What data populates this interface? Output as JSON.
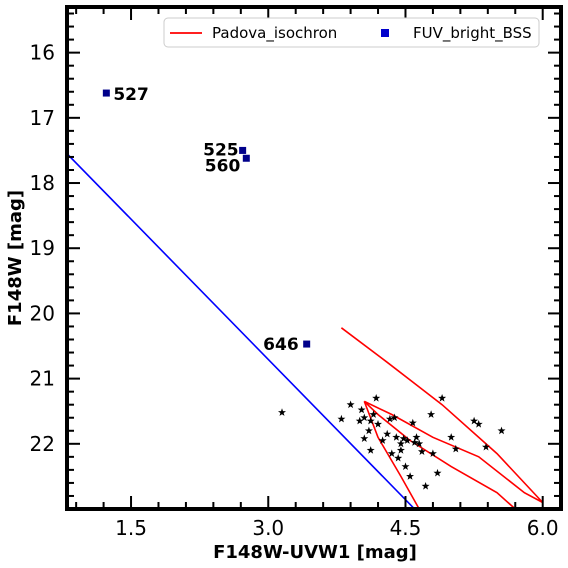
{
  "chart_data": {
    "type": "scatter",
    "title": "",
    "xlabel": "F148W-UVW1 [mag]",
    "ylabel": "F148W [mag]",
    "xlim": [
      0.8,
      6.2
    ],
    "ylim": [
      23.0,
      15.3
    ],
    "y_inverted": true,
    "xticks": [
      {
        "value": 1.5,
        "label": "1.5"
      },
      {
        "value": 3.0,
        "label": "3.0"
      },
      {
        "value": 4.5,
        "label": "4.5"
      },
      {
        "value": 6.0,
        "label": "6.0"
      }
    ],
    "yticks": [
      {
        "value": 16,
        "label": "16"
      },
      {
        "value": 17,
        "label": "17"
      },
      {
        "value": 18,
        "label": "18"
      },
      {
        "value": 19,
        "label": "19"
      },
      {
        "value": 20,
        "label": "20"
      },
      {
        "value": 21,
        "label": "21"
      },
      {
        "value": 22,
        "label": "22"
      }
    ],
    "legend": {
      "placement": "top-right",
      "entries": [
        {
          "label": "Padova_isochron",
          "marker": "line",
          "color": "#ff0000"
        },
        {
          "label": "FUV_bright_BSS",
          "marker": "square",
          "color": "#0000cc"
        }
      ]
    },
    "series": [
      {
        "name": "FUV_bright_BSS",
        "kind": "scatter-square",
        "color": "#00008b",
        "points": [
          {
            "x": 1.23,
            "y": 16.62,
            "label": "527"
          },
          {
            "x": 2.72,
            "y": 17.5,
            "label": "525"
          },
          {
            "x": 2.76,
            "y": 17.62,
            "label": "560"
          },
          {
            "x": 3.42,
            "y": 20.47,
            "label": "646"
          }
        ]
      },
      {
        "name": "Padova_isochron",
        "kind": "line",
        "color": "#ff0000",
        "points": [
          {
            "x": 3.8,
            "y": 20.22
          },
          {
            "x": 4.3,
            "y": 20.75
          },
          {
            "x": 4.9,
            "y": 21.4
          },
          {
            "x": 5.5,
            "y": 22.15
          },
          {
            "x": 6.0,
            "y": 22.9
          },
          {
            "x": 5.8,
            "y": 22.75
          },
          {
            "x": 5.3,
            "y": 22.2
          },
          {
            "x": 4.8,
            "y": 21.9
          },
          {
            "x": 4.35,
            "y": 21.55
          },
          {
            "x": 4.05,
            "y": 21.35
          },
          {
            "x": 4.2,
            "y": 21.55
          },
          {
            "x": 4.55,
            "y": 21.95
          },
          {
            "x": 5.0,
            "y": 22.35
          },
          {
            "x": 5.5,
            "y": 22.75
          },
          {
            "x": 5.7,
            "y": 23.0
          }
        ]
      },
      {
        "kind": "line",
        "color": "#ff0000",
        "points": [
          {
            "x": 4.05,
            "y": 21.35
          },
          {
            "x": 4.2,
            "y": 21.9
          },
          {
            "x": 4.45,
            "y": 22.5
          },
          {
            "x": 4.65,
            "y": 23.0
          }
        ]
      },
      {
        "kind": "line",
        "color": "#0000ff",
        "points": [
          {
            "x": 0.8,
            "y": 17.55
          },
          {
            "x": 4.6,
            "y": 23.0
          }
        ]
      },
      {
        "kind": "scatter-star",
        "color": "#000000",
        "points": [
          {
            "x": 3.15,
            "y": 21.52
          },
          {
            "x": 3.8,
            "y": 21.62
          },
          {
            "x": 3.9,
            "y": 21.4
          },
          {
            "x": 4.02,
            "y": 21.48
          },
          {
            "x": 4.05,
            "y": 21.6
          },
          {
            "x": 4.12,
            "y": 21.65
          },
          {
            "x": 4.18,
            "y": 21.3
          },
          {
            "x": 4.2,
            "y": 21.7
          },
          {
            "x": 4.1,
            "y": 21.8
          },
          {
            "x": 4.05,
            "y": 21.92
          },
          {
            "x": 4.12,
            "y": 22.1
          },
          {
            "x": 4.25,
            "y": 21.95
          },
          {
            "x": 4.3,
            "y": 21.85
          },
          {
            "x": 4.33,
            "y": 21.62
          },
          {
            "x": 4.38,
            "y": 21.6
          },
          {
            "x": 4.35,
            "y": 22.15
          },
          {
            "x": 4.42,
            "y": 22.22
          },
          {
            "x": 4.4,
            "y": 21.9
          },
          {
            "x": 4.45,
            "y": 22.0
          },
          {
            "x": 4.48,
            "y": 21.92
          },
          {
            "x": 4.52,
            "y": 21.95
          },
          {
            "x": 4.5,
            "y": 22.35
          },
          {
            "x": 4.55,
            "y": 22.5
          },
          {
            "x": 4.58,
            "y": 21.68
          },
          {
            "x": 4.6,
            "y": 21.98
          },
          {
            "x": 4.62,
            "y": 21.9
          },
          {
            "x": 4.65,
            "y": 22.0
          },
          {
            "x": 4.68,
            "y": 22.12
          },
          {
            "x": 4.72,
            "y": 22.65
          },
          {
            "x": 4.78,
            "y": 21.55
          },
          {
            "x": 4.8,
            "y": 22.15
          },
          {
            "x": 4.85,
            "y": 22.45
          },
          {
            "x": 4.9,
            "y": 21.3
          },
          {
            "x": 5.0,
            "y": 21.9
          },
          {
            "x": 5.05,
            "y": 22.08
          },
          {
            "x": 5.25,
            "y": 21.65
          },
          {
            "x": 5.3,
            "y": 21.7
          },
          {
            "x": 5.38,
            "y": 22.05
          },
          {
            "x": 5.55,
            "y": 21.8
          },
          {
            "x": 4.0,
            "y": 21.65
          },
          {
            "x": 4.15,
            "y": 21.55
          },
          {
            "x": 4.45,
            "y": 22.1
          }
        ]
      }
    ]
  }
}
